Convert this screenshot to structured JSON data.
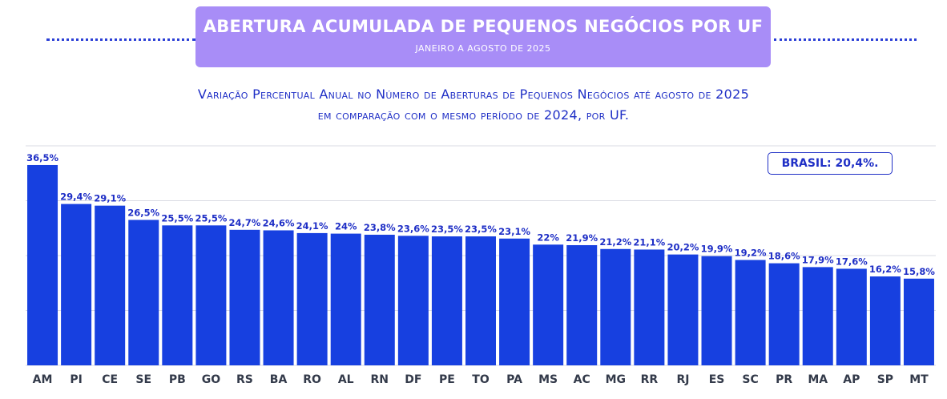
{
  "header": {
    "title": "ABERTURA ACUMULADA DE PEQUENOS NEGÓCIOS POR UF",
    "period": "JANEIRO A AGOSTO DE 2025"
  },
  "subtitle": {
    "line1": "Variação Percentual Anual no Número de Aberturas de Pequenos Negócios até  agosto de 2025",
    "line2": "em comparação com o mesmo período de 2024, por UF."
  },
  "brasil_badge": "BRASIL: 20,4%.",
  "colors": {
    "bar": "#1740e0",
    "title_bg": "#a88df7",
    "text": "#1f2fc6",
    "grid": "#d9dbe3"
  },
  "chart_data": {
    "type": "bar",
    "categories": [
      "AM",
      "PI",
      "CE",
      "SE",
      "PB",
      "GO",
      "RS",
      "BA",
      "RO",
      "AL",
      "RN",
      "DF",
      "PE",
      "TO",
      "PA",
      "MS",
      "AC",
      "MG",
      "RR",
      "RJ",
      "ES",
      "SC",
      "PR",
      "MA",
      "AP",
      "SP",
      "MT"
    ],
    "values": [
      36.5,
      29.4,
      29.1,
      26.5,
      25.5,
      25.5,
      24.7,
      24.6,
      24.1,
      24,
      23.8,
      23.6,
      23.5,
      23.5,
      23.1,
      22,
      21.9,
      21.2,
      21.1,
      20.2,
      19.9,
      19.2,
      18.6,
      17.9,
      17.6,
      16.2,
      15.8
    ],
    "labels": [
      "36,5%",
      "29,4%",
      "29,1%",
      "26,5%",
      "25,5%",
      "25,5%",
      "24,7%",
      "24,6%",
      "24,1%",
      "24%",
      "23,8%",
      "23,6%",
      "23,5%",
      "23,5%",
      "23,1%",
      "22%",
      "21,9%",
      "21,2%",
      "21,1%",
      "20,2%",
      "19,9%",
      "19,2%",
      "18,6%",
      "17,9%",
      "17,6%",
      "16,2%",
      "15,8%"
    ],
    "ylim": [
      0,
      40
    ],
    "grid": true,
    "gridlines": [
      10,
      20,
      30,
      40
    ]
  }
}
